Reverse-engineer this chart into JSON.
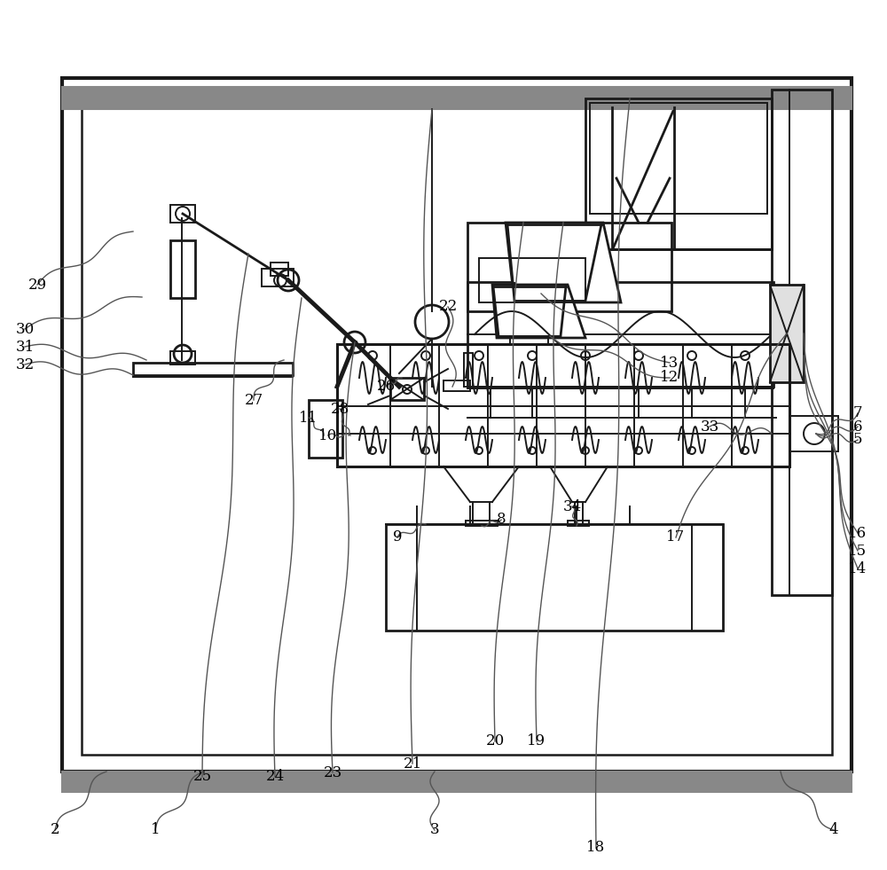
{
  "bg": "#ffffff",
  "lc": "#1a1a1a",
  "fig_w": 10.0,
  "fig_h": 9.81
}
